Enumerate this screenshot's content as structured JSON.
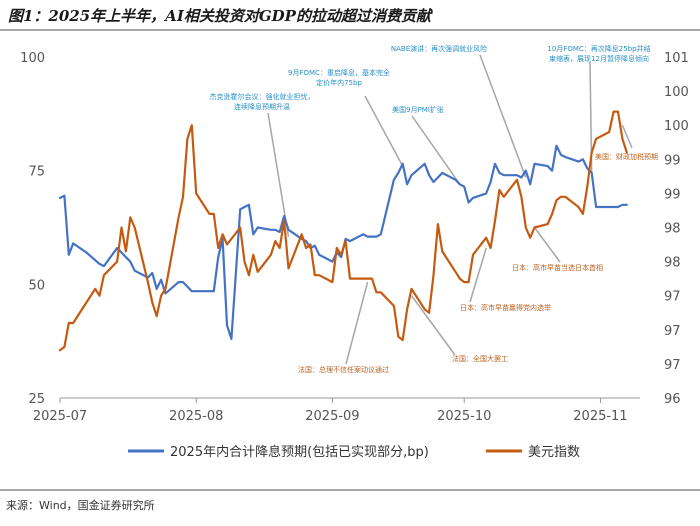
{
  "title": "图1：2025年上半年，AI相关投资对GDP的拉动超过消费贡献",
  "source": "来源：Wind，国金证券研究所",
  "colors": {
    "blue": "#4472c4",
    "orange": "#c55a11",
    "pointer": "#a6a6a6",
    "ann_blue": "#2a8fc8",
    "ann_orange": "#c0601e"
  },
  "chart_data": {
    "type": "line",
    "x_range": [
      "2025-07-01",
      "2025-11-10"
    ],
    "x_ticks": [
      {
        "date": "2025-07-01",
        "label": "2025-07"
      },
      {
        "date": "2025-08-01",
        "label": "2025-08"
      },
      {
        "date": "2025-09-01",
        "label": "2025-09"
      },
      {
        "date": "2025-10-01",
        "label": "2025-10"
      },
      {
        "date": "2025-11-01",
        "label": "2025-11"
      }
    ],
    "left_axis": {
      "ylim": [
        25,
        100
      ],
      "ticks": [
        {
          "v": 100,
          "label": "100"
        },
        {
          "v": 75,
          "label": "75"
        },
        {
          "v": 50,
          "label": "50"
        },
        {
          "v": 25,
          "label": "25"
        }
      ]
    },
    "right_axis": {
      "ylim": [
        96,
        101
      ],
      "ticks": [
        {
          "v": 101,
          "label": "101"
        },
        {
          "v": 100.5,
          "label": "100"
        },
        {
          "v": 100,
          "label": "100"
        },
        {
          "v": 99.5,
          "label": "99"
        },
        {
          "v": 99,
          "label": "99"
        },
        {
          "v": 98.5,
          "label": "98"
        },
        {
          "v": 98,
          "label": "98"
        },
        {
          "v": 97.5,
          "label": "97"
        },
        {
          "v": 97,
          "label": "97"
        },
        {
          "v": 96.5,
          "label": "97"
        },
        {
          "v": 96,
          "label": "96"
        }
      ]
    },
    "series": [
      {
        "name": "2025年内合计降息预期(包括已实现部分,bp)",
        "axis": "left",
        "color": "#4472c4",
        "points": [
          [
            "2025-07-01",
            69
          ],
          [
            "2025-07-02",
            69.5
          ],
          [
            "2025-07-03",
            56.5
          ],
          [
            "2025-07-04",
            59
          ],
          [
            "2025-07-07",
            57
          ],
          [
            "2025-07-10",
            54.5
          ],
          [
            "2025-07-11",
            54
          ],
          [
            "2025-07-14",
            58
          ],
          [
            "2025-07-15",
            57
          ],
          [
            "2025-07-16",
            56
          ],
          [
            "2025-07-17",
            55
          ],
          [
            "2025-07-18",
            53
          ],
          [
            "2025-07-21",
            51.5
          ],
          [
            "2025-07-22",
            52.5
          ],
          [
            "2025-07-23",
            49
          ],
          [
            "2025-07-24",
            51
          ],
          [
            "2025-07-25",
            48
          ],
          [
            "2025-07-28",
            50.5
          ],
          [
            "2025-07-29",
            50.5
          ],
          [
            "2025-07-30",
            49.5
          ],
          [
            "2025-07-31",
            48.5
          ],
          [
            "2025-08-01",
            48.5
          ],
          [
            "2025-08-04",
            48.5
          ],
          [
            "2025-08-05",
            48.5
          ],
          [
            "2025-08-06",
            56
          ],
          [
            "2025-08-07",
            60
          ],
          [
            "2025-08-08",
            41
          ],
          [
            "2025-08-09",
            38
          ],
          [
            "2025-08-11",
            66.5
          ],
          [
            "2025-08-12",
            67
          ],
          [
            "2025-08-13",
            67.5
          ],
          [
            "2025-08-14",
            61
          ],
          [
            "2025-08-15",
            62.5
          ],
          [
            "2025-08-18",
            62
          ],
          [
            "2025-08-19",
            62
          ],
          [
            "2025-08-20",
            61.5
          ],
          [
            "2025-08-21",
            65
          ],
          [
            "2025-08-22",
            62
          ],
          [
            "2025-08-25",
            60
          ],
          [
            "2025-08-26",
            59.5
          ],
          [
            "2025-08-27",
            58
          ],
          [
            "2025-08-28",
            58.5
          ],
          [
            "2025-08-29",
            56.5
          ],
          [
            "2025-09-01",
            55
          ],
          [
            "2025-09-02",
            57
          ],
          [
            "2025-09-03",
            56
          ],
          [
            "2025-09-04",
            60
          ],
          [
            "2025-09-05",
            59.5
          ],
          [
            "2025-09-08",
            61
          ],
          [
            "2025-09-09",
            60.5
          ],
          [
            "2025-09-10",
            60.5
          ],
          [
            "2025-09-11",
            60.5
          ],
          [
            "2025-09-12",
            61
          ],
          [
            "2025-09-15",
            73
          ],
          [
            "2025-09-16",
            74.5
          ],
          [
            "2025-09-17",
            76.5
          ],
          [
            "2025-09-18",
            72
          ],
          [
            "2025-09-19",
            74
          ],
          [
            "2025-09-22",
            76.5
          ],
          [
            "2025-09-23",
            74
          ],
          [
            "2025-09-24",
            72.5
          ],
          [
            "2025-09-25",
            73.5
          ],
          [
            "2025-09-26",
            74.5
          ],
          [
            "2025-09-29",
            73
          ],
          [
            "2025-09-30",
            72
          ],
          [
            "2025-10-01",
            71.5
          ],
          [
            "2025-10-02",
            68
          ],
          [
            "2025-10-03",
            69
          ],
          [
            "2025-10-06",
            70
          ],
          [
            "2025-10-07",
            72.5
          ],
          [
            "2025-10-08",
            76.5
          ],
          [
            "2025-10-09",
            74.5
          ],
          [
            "2025-10-10",
            74
          ],
          [
            "2025-10-13",
            74
          ],
          [
            "2025-10-14",
            73.5
          ],
          [
            "2025-10-15",
            75
          ],
          [
            "2025-10-16",
            72
          ],
          [
            "2025-10-17",
            76.5
          ],
          [
            "2025-10-20",
            76
          ],
          [
            "2025-10-21",
            75
          ],
          [
            "2025-10-22",
            80.5
          ],
          [
            "2025-10-23",
            78.5
          ],
          [
            "2025-10-24",
            78
          ],
          [
            "2025-10-27",
            77
          ],
          [
            "2025-10-28",
            77.5
          ],
          [
            "2025-10-29",
            75.5
          ],
          [
            "2025-10-30",
            74.5
          ],
          [
            "2025-10-31",
            67
          ],
          [
            "2025-11-03",
            67
          ],
          [
            "2025-11-04",
            67
          ],
          [
            "2025-11-05",
            67
          ],
          [
            "2025-11-06",
            67.5
          ],
          [
            "2025-11-07",
            67.5
          ]
        ]
      },
      {
        "name": "美元指数",
        "axis": "right",
        "color": "#c55a11",
        "points": [
          [
            "2025-07-01",
            96.7
          ],
          [
            "2025-07-02",
            96.75
          ],
          [
            "2025-07-03",
            97.1
          ],
          [
            "2025-07-04",
            97.1
          ],
          [
            "2025-07-07",
            97.4
          ],
          [
            "2025-07-08",
            97.5
          ],
          [
            "2025-07-09",
            97.6
          ],
          [
            "2025-07-10",
            97.5
          ],
          [
            "2025-07-11",
            97.8
          ],
          [
            "2025-07-14",
            98.0
          ],
          [
            "2025-07-15",
            98.5
          ],
          [
            "2025-07-16",
            98.15
          ],
          [
            "2025-07-17",
            98.65
          ],
          [
            "2025-07-18",
            98.5
          ],
          [
            "2025-07-21",
            97.7
          ],
          [
            "2025-07-22",
            97.4
          ],
          [
            "2025-07-23",
            97.2
          ],
          [
            "2025-07-24",
            97.5
          ],
          [
            "2025-07-25",
            97.6
          ],
          [
            "2025-07-28",
            98.65
          ],
          [
            "2025-07-29",
            98.95
          ],
          [
            "2025-07-30",
            99.8
          ],
          [
            "2025-07-31",
            100.0
          ],
          [
            "2025-08-01",
            99.0
          ],
          [
            "2025-08-04",
            98.7
          ],
          [
            "2025-08-05",
            98.7
          ],
          [
            "2025-08-06",
            98.2
          ],
          [
            "2025-08-07",
            98.4
          ],
          [
            "2025-08-08",
            98.25
          ],
          [
            "2025-08-11",
            98.5
          ],
          [
            "2025-08-12",
            98.0
          ],
          [
            "2025-08-13",
            97.8
          ],
          [
            "2025-08-14",
            98.1
          ],
          [
            "2025-08-15",
            97.85
          ],
          [
            "2025-08-18",
            98.1
          ],
          [
            "2025-08-19",
            98.3
          ],
          [
            "2025-08-20",
            98.2
          ],
          [
            "2025-08-21",
            98.6
          ],
          [
            "2025-08-22",
            97.9
          ],
          [
            "2025-08-25",
            98.4
          ],
          [
            "2025-08-26",
            98.2
          ],
          [
            "2025-08-27",
            98.25
          ],
          [
            "2025-08-28",
            97.8
          ],
          [
            "2025-08-29",
            97.8
          ],
          [
            "2025-09-01",
            97.7
          ],
          [
            "2025-09-02",
            98.2
          ],
          [
            "2025-09-03",
            98.1
          ],
          [
            "2025-09-04",
            98.3
          ],
          [
            "2025-09-05",
            97.75
          ],
          [
            "2025-09-08",
            97.75
          ],
          [
            "2025-09-09",
            97.75
          ],
          [
            "2025-09-10",
            97.75
          ],
          [
            "2025-09-11",
            97.55
          ],
          [
            "2025-09-12",
            97.55
          ],
          [
            "2025-09-15",
            97.35
          ],
          [
            "2025-09-16",
            96.9
          ],
          [
            "2025-09-17",
            96.85
          ],
          [
            "2025-09-18",
            97.3
          ],
          [
            "2025-09-19",
            97.6
          ],
          [
            "2025-09-22",
            97.3
          ],
          [
            "2025-09-23",
            97.25
          ],
          [
            "2025-09-24",
            97.8
          ],
          [
            "2025-09-25",
            98.55
          ],
          [
            "2025-09-26",
            98.15
          ],
          [
            "2025-09-29",
            97.85
          ],
          [
            "2025-09-30",
            97.75
          ],
          [
            "2025-10-01",
            97.7
          ],
          [
            "2025-10-02",
            97.7
          ],
          [
            "2025-10-03",
            98.1
          ],
          [
            "2025-10-06",
            98.35
          ],
          [
            "2025-10-07",
            98.2
          ],
          [
            "2025-10-08",
            98.6
          ],
          [
            "2025-10-09",
            99.05
          ],
          [
            "2025-10-10",
            98.95
          ],
          [
            "2025-10-13",
            99.2
          ],
          [
            "2025-10-14",
            98.95
          ],
          [
            "2025-10-15",
            98.5
          ],
          [
            "2025-10-16",
            98.35
          ],
          [
            "2025-10-17",
            98.5
          ],
          [
            "2025-10-20",
            98.55
          ],
          [
            "2025-10-21",
            98.7
          ],
          [
            "2025-10-22",
            98.9
          ],
          [
            "2025-10-23",
            98.95
          ],
          [
            "2025-10-24",
            98.95
          ],
          [
            "2025-10-27",
            98.8
          ],
          [
            "2025-10-28",
            98.7
          ],
          [
            "2025-10-29",
            99.1
          ],
          [
            "2025-10-30",
            99.6
          ],
          [
            "2025-10-31",
            99.8
          ],
          [
            "2025-11-03",
            99.9
          ],
          [
            "2025-11-04",
            100.2
          ],
          [
            "2025-11-05",
            100.2
          ],
          [
            "2025-11-06",
            99.8
          ],
          [
            "2025-11-07",
            99.6
          ]
        ]
      }
    ],
    "annotations": [
      {
        "id": "a1",
        "color": "blue",
        "lines": [
          "杰克逊霍尔会议：强化就业担忧，",
          "连续降息预期升温"
        ],
        "x": "2025-08-22",
        "axis": "left",
        "y": 60.5
      },
      {
        "id": "a2",
        "color": "blue",
        "lines": [
          "9月FOMC：重启降息，基本完全",
          "定价年内75bp"
        ],
        "x": "2025-09-17",
        "axis": "left",
        "y": 76
      },
      {
        "id": "a3",
        "color": "blue",
        "lines": [
          "美国9月PMI扩张"
        ],
        "x": "2025-09-30",
        "axis": "left",
        "y": 72
      },
      {
        "id": "a4",
        "color": "blue",
        "lines": [
          "NABE演讲：再次强调就业风险"
        ],
        "x": "2025-10-15",
        "axis": "left",
        "y": 73.5
      },
      {
        "id": "a5",
        "color": "blue",
        "lines": [
          "10月FOMC：再次降息25bp并结",
          "束缩表，展现12月暂停降息倾向"
        ],
        "x": "2025-10-30",
        "axis": "left",
        "y": 74.5
      },
      {
        "id": "a6",
        "color": "orange",
        "lines": [
          "美国：财政加税预期"
        ],
        "x": "2025-11-06",
        "axis": "right",
        "y": 100.0
      },
      {
        "id": "a7",
        "color": "orange",
        "lines": [
          "日本：高市早苗当选日本首相"
        ],
        "x": "2025-10-17",
        "axis": "right",
        "y": 98.5
      },
      {
        "id": "a8",
        "color": "orange",
        "lines": [
          "日本：高市早苗赢得党内选举"
        ],
        "x": "2025-10-06",
        "axis": "right",
        "y": 98.2
      },
      {
        "id": "a9",
        "color": "orange",
        "lines": [
          "法国：全国大罢工"
        ],
        "x": "2025-09-19",
        "axis": "right",
        "y": 97.5
      },
      {
        "id": "a10",
        "color": "orange",
        "lines": [
          "法国：总理不信任案动议通过"
        ],
        "x": "2025-09-09",
        "axis": "right",
        "y": 97.7
      }
    ]
  },
  "legend": {
    "blue_label": "2025年内合计降息预期(包括已实现部分,bp)",
    "orange_label": "美元指数"
  }
}
